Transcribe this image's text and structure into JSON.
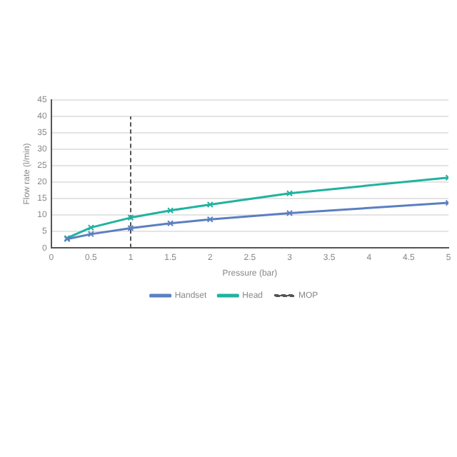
{
  "chart_data": {
    "type": "line",
    "xlabel": "Pressure (bar)",
    "ylabel": "Flow rate (l/min)",
    "x": [
      0.2,
      0.5,
      1,
      1.5,
      2,
      3,
      5
    ],
    "series": [
      {
        "name": "Handset",
        "color": "#5b7fc0",
        "values": [
          2.7,
          4.2,
          6,
          7.5,
          8.7,
          10.6,
          13.7
        ]
      },
      {
        "name": "Head",
        "color": "#20b2a0",
        "values": [
          3,
          6.2,
          9.2,
          11.4,
          13.2,
          16.6,
          21.4
        ]
      },
      {
        "name": "MOP",
        "color": "#555555",
        "x": [
          1,
          1
        ],
        "values": [
          0,
          40
        ],
        "line_style": "dashed",
        "marker": "none"
      }
    ],
    "xlim": [
      0,
      5
    ],
    "xticks": [
      0,
      0.5,
      1,
      1.5,
      2,
      2.5,
      3,
      3.5,
      4,
      4.5,
      5
    ],
    "ylim": [
      0,
      45
    ],
    "yticks": [
      0,
      5,
      10,
      15,
      20,
      25,
      30,
      35,
      40,
      45
    ],
    "grid": "y",
    "legend": "bottom",
    "marker": "cross",
    "line_style": "solid"
  }
}
